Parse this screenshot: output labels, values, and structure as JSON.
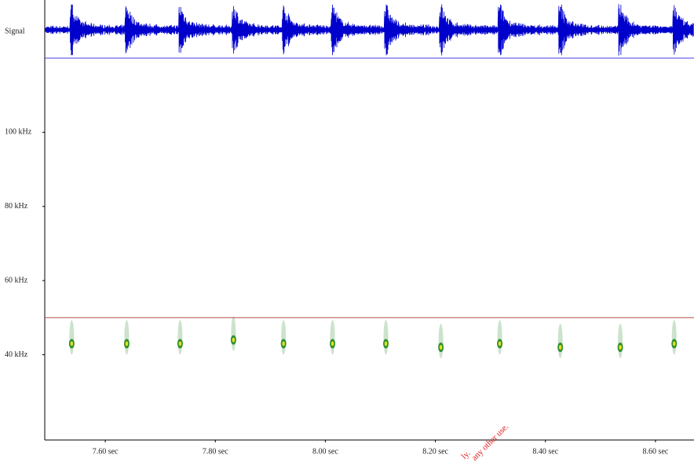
{
  "chart_data": {
    "type": "spectrogram",
    "signal_label": "Signal",
    "xlim": [
      7.49,
      8.67
    ],
    "ylim": [
      17,
      120
    ],
    "xticks": [
      {
        "value": 7.6,
        "label": "7.60 sec"
      },
      {
        "value": 7.8,
        "label": "7.80 sec"
      },
      {
        "value": 8.0,
        "label": "8.00 sec"
      },
      {
        "value": 8.2,
        "label": "8.20 sec"
      },
      {
        "value": 8.4,
        "label": "8.40 sec"
      },
      {
        "value": 8.6,
        "label": "8.60 sec"
      }
    ],
    "yticks": [
      {
        "value": 40,
        "label": "40 kHz"
      },
      {
        "value": 60,
        "label": "60 kHz"
      },
      {
        "value": 80,
        "label": "80 kHz"
      },
      {
        "value": 100,
        "label": "100 kHz"
      }
    ],
    "reference_line": 50,
    "reference_color": "#c06060",
    "signal_color": "#0000cc",
    "series": [
      {
        "color": "#2f8f2f",
        "x": [
          7.539,
          7.639,
          7.736,
          7.833,
          7.924,
          8.013,
          8.11,
          8.21,
          8.317,
          8.427,
          8.536,
          8.634
        ],
        "values": [
          43,
          43,
          43,
          44,
          43,
          43,
          43,
          42,
          43,
          42,
          42,
          43
        ]
      }
    ],
    "watermark": [
      "ly.",
      "any other use."
    ]
  }
}
